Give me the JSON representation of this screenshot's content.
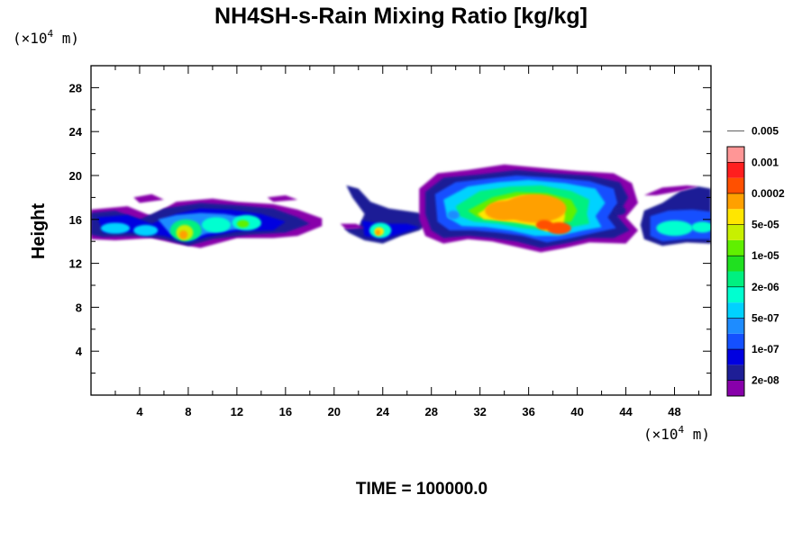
{
  "chart_data": {
    "type": "heatmap",
    "title": "NH4SH-s-Rain Mixing Ratio [kg/kg]",
    "ylabel": "Height",
    "x_units": {
      "prefix": "(×10",
      "exp": "4",
      "suffix": " m)"
    },
    "y_units": {
      "prefix": "(×10",
      "exp": "4",
      "suffix": " m)"
    },
    "xlim": [
      0,
      51
    ],
    "ylim": [
      0,
      30
    ],
    "x_ticks": [
      "4",
      "8",
      "12",
      "16",
      "20",
      "24",
      "28",
      "32",
      "36",
      "40",
      "44",
      "48"
    ],
    "y_ticks": [
      "4",
      "8",
      "12",
      "16",
      "20",
      "24",
      "28"
    ],
    "footer": "TIME = 100000.0",
    "colorbar": {
      "levels": [
        "purple",
        "navy",
        "blue",
        "royal",
        "azure",
        "cyan",
        "aquamarine",
        "spring",
        "green",
        "lime",
        "yellow-green",
        "yellow",
        "orange",
        "dark-orange",
        "red",
        "salmon"
      ],
      "colors": [
        "#8800aa",
        "#1e1e96",
        "#0000e0",
        "#1450ff",
        "#1e8cff",
        "#00d2ff",
        "#00ffd0",
        "#00f080",
        "#20e020",
        "#60f000",
        "#c8f000",
        "#ffe600",
        "#ffa000",
        "#ff5000",
        "#ff1e1e",
        "#ff9696"
      ],
      "labels": [
        "2e-08",
        "1e-07",
        "5e-07",
        "2e-06",
        "1e-05",
        "5e-05",
        "0.0002",
        "0.001",
        "0.005"
      ]
    },
    "field_description_levels": [
      {
        "x": [
          0,
          5
        ],
        "y": [
          14,
          17
        ],
        "level": 2
      },
      {
        "x": [
          5.5,
          11
        ],
        "y": [
          13,
          17.5
        ],
        "level": 6
      },
      {
        "x": [
          11,
          18.5
        ],
        "y": [
          14,
          17.5
        ],
        "level": 5
      },
      {
        "x": [
          21.5,
          26
        ],
        "y": [
          14,
          19
        ],
        "level": 5
      },
      {
        "x": [
          27,
          45
        ],
        "y": [
          13,
          20.5
        ],
        "level": 12
      },
      {
        "x": [
          45.5,
          51
        ],
        "y": [
          13.5,
          19
        ],
        "level": 5
      }
    ]
  }
}
